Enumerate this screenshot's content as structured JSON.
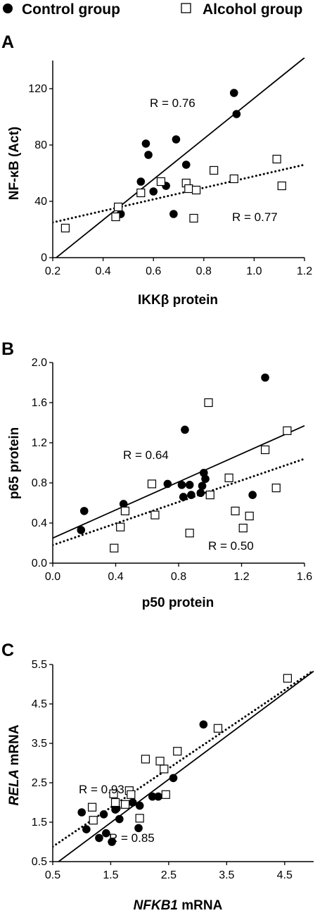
{
  "legend": {
    "control": "Control group",
    "alcohol": "Alcohol group"
  },
  "colors": {
    "control": "#000000",
    "alcohol": "#ffffff",
    "axis": "#000000"
  },
  "chart_data": [
    {
      "panel": "A",
      "type": "scatter",
      "xlabel": "IKKβ protein",
      "ylabel": "NF-κB (Act)",
      "xlim": [
        0.2,
        1.2
      ],
      "ylim": [
        0,
        140
      ],
      "xticks": [
        0.2,
        0.4,
        0.6,
        0.8,
        1.0,
        1.2
      ],
      "xtick_labels": [
        "0.2",
        "0.4",
        "0.6",
        "0.8",
        "1.0",
        "1.2"
      ],
      "yticks": [
        0,
        40,
        80,
        120
      ],
      "ytick_labels": [
        "0",
        "40",
        "80",
        "120"
      ],
      "series": [
        {
          "name": "Control group",
          "marker": "filled-circle",
          "line": "solid",
          "r_label": "R = 0.76",
          "fit": [
            [
              0.2,
              -2
            ],
            [
              1.2,
              142
            ]
          ],
          "points": [
            [
              0.47,
              31
            ],
            [
              0.55,
              54
            ],
            [
              0.57,
              81
            ],
            [
              0.58,
              73
            ],
            [
              0.6,
              47
            ],
            [
              0.65,
              51
            ],
            [
              0.68,
              31
            ],
            [
              0.69,
              84
            ],
            [
              0.73,
              66
            ],
            [
              0.92,
              117
            ],
            [
              0.93,
              102
            ]
          ]
        },
        {
          "name": "Alcohol group",
          "marker": "open-square",
          "line": "dotted",
          "r_label": "R = 0.77",
          "fit": [
            [
              0.2,
              25
            ],
            [
              1.2,
              66
            ]
          ],
          "points": [
            [
              0.25,
              21
            ],
            [
              0.45,
              29
            ],
            [
              0.46,
              36
            ],
            [
              0.55,
              46
            ],
            [
              0.63,
              54
            ],
            [
              0.73,
              53
            ],
            [
              0.74,
              49
            ],
            [
              0.77,
              48
            ],
            [
              0.76,
              28
            ],
            [
              0.84,
              62
            ],
            [
              0.92,
              56
            ],
            [
              1.09,
              70
            ],
            [
              1.11,
              51
            ]
          ]
        }
      ]
    },
    {
      "panel": "B",
      "type": "scatter",
      "xlabel": "p50 protein",
      "ylabel": "p65 protein",
      "xlim": [
        0,
        1.6
      ],
      "ylim": [
        0,
        2.0
      ],
      "xticks": [
        0,
        0.4,
        0.8,
        1.2,
        1.6
      ],
      "xtick_labels": [
        "0.0",
        "0.4",
        "0.8",
        "1.2",
        "1.6"
      ],
      "yticks": [
        0,
        0.4,
        0.8,
        1.2,
        1.6,
        2.0
      ],
      "ytick_labels": [
        "0.0",
        "0.4",
        "0.8",
        "1.2",
        "1.6",
        "2.0"
      ],
      "series": [
        {
          "name": "Control group",
          "marker": "filled-circle",
          "line": "solid",
          "r_label": "R = 0.64",
          "fit": [
            [
              0,
              0.25
            ],
            [
              1.6,
              1.37
            ]
          ],
          "points": [
            [
              0.18,
              0.33
            ],
            [
              0.2,
              0.52
            ],
            [
              0.45,
              0.59
            ],
            [
              0.73,
              0.79
            ],
            [
              0.82,
              0.78
            ],
            [
              0.83,
              0.66
            ],
            [
              0.84,
              1.33
            ],
            [
              0.87,
              0.78
            ],
            [
              0.88,
              0.68
            ],
            [
              0.94,
              0.7
            ],
            [
              0.95,
              0.77
            ],
            [
              0.96,
              0.9
            ],
            [
              0.97,
              0.84
            ],
            [
              1.27,
              0.68
            ],
            [
              1.35,
              1.85
            ]
          ]
        },
        {
          "name": "Alcohol group",
          "marker": "open-square",
          "line": "dotted",
          "r_label": "R = 0.50",
          "fit": [
            [
              0,
              0.18
            ],
            [
              1.6,
              1.04
            ]
          ],
          "points": [
            [
              0.39,
              0.15
            ],
            [
              0.43,
              0.36
            ],
            [
              0.46,
              0.52
            ],
            [
              0.63,
              0.79
            ],
            [
              0.65,
              0.48
            ],
            [
              0.87,
              0.3
            ],
            [
              0.99,
              1.6
            ],
            [
              1.0,
              0.68
            ],
            [
              1.12,
              0.85
            ],
            [
              1.16,
              0.52
            ],
            [
              1.21,
              0.35
            ],
            [
              1.25,
              0.47
            ],
            [
              1.35,
              1.13
            ],
            [
              1.42,
              0.75
            ],
            [
              1.49,
              1.32
            ]
          ]
        }
      ]
    },
    {
      "panel": "C",
      "type": "scatter",
      "xlabel_italic": "NFKB1",
      "xlabel_rest": " mRNA",
      "ylabel_italic": "RELA",
      "ylabel_rest": " mRNA",
      "xlim": [
        0.5,
        5.0
      ],
      "ylim": [
        0.5,
        5.5
      ],
      "xticks": [
        0.5,
        1.5,
        2.5,
        3.5,
        4.5
      ],
      "xtick_labels": [
        "0.5",
        "1.5",
        "2.5",
        "3.5",
        "4.5"
      ],
      "yticks": [
        0.5,
        1.5,
        2.5,
        3.5,
        4.5,
        5.5
      ],
      "ytick_labels": [
        "0.5",
        "1.5",
        "2.5",
        "3.5",
        "4.5",
        "5.5"
      ],
      "series": [
        {
          "name": "Control group",
          "marker": "filled-circle",
          "line": "solid",
          "r_label": "R = 0.85",
          "fit": [
            [
              0.6,
              0.5
            ],
            [
              5.0,
              5.33
            ]
          ],
          "points": [
            [
              1.0,
              1.75
            ],
            [
              1.08,
              1.32
            ],
            [
              1.3,
              1.1
            ],
            [
              1.38,
              1.7
            ],
            [
              1.42,
              1.22
            ],
            [
              1.52,
              1.0
            ],
            [
              1.58,
              1.82
            ],
            [
              1.6,
              1.85
            ],
            [
              1.65,
              1.58
            ],
            [
              1.88,
              2.0
            ],
            [
              1.98,
              1.35
            ],
            [
              2.0,
              1.92
            ],
            [
              2.22,
              2.15
            ],
            [
              2.32,
              2.15
            ],
            [
              2.58,
              2.62
            ],
            [
              3.1,
              3.98
            ]
          ]
        },
        {
          "name": "Alcohol group",
          "marker": "open-square",
          "line": "dotted",
          "r_label": "R = 0.93",
          "fit": [
            [
              0.5,
              0.88
            ],
            [
              5.0,
              5.35
            ]
          ],
          "points": [
            [
              1.18,
              1.88
            ],
            [
              1.2,
              1.55
            ],
            [
              1.55,
              2.22
            ],
            [
              1.58,
              2.0
            ],
            [
              1.75,
              1.95
            ],
            [
              1.82,
              2.3
            ],
            [
              1.85,
              2.2
            ],
            [
              2.0,
              1.6
            ],
            [
              2.1,
              3.1
            ],
            [
              2.35,
              3.05
            ],
            [
              2.42,
              2.85
            ],
            [
              2.45,
              2.2
            ],
            [
              2.65,
              3.3
            ],
            [
              3.35,
              3.88
            ],
            [
              4.55,
              5.15
            ]
          ]
        }
      ]
    }
  ]
}
